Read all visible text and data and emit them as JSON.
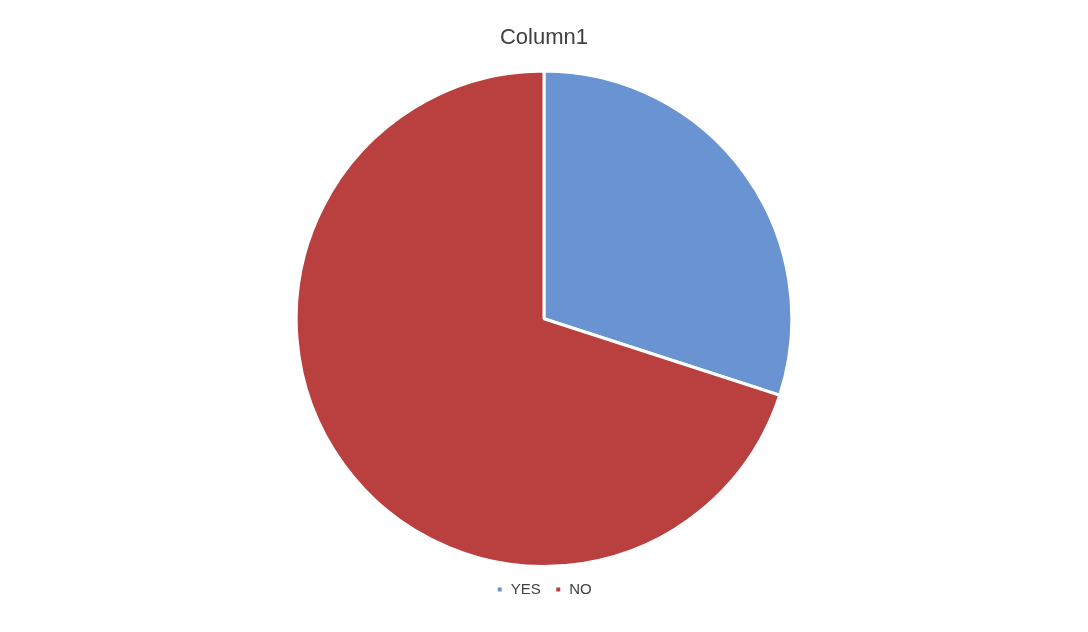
{
  "chart_data": {
    "type": "pie",
    "title": "Column1",
    "categories": [
      "YES",
      "NO"
    ],
    "values": [
      30,
      70
    ],
    "colors": [
      "#6a93d1",
      "#b9403f"
    ],
    "legend": "bottom"
  }
}
